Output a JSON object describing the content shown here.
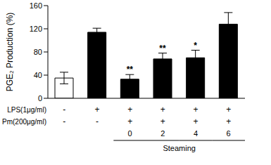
{
  "chart_data": {
    "type": "bar",
    "y_label": "PGE₂ Production (%)",
    "categories": [
      null,
      null,
      "0",
      "2",
      "4",
      "6"
    ],
    "values": [
      35,
      114,
      33,
      68,
      70,
      128
    ],
    "errors": [
      10,
      7,
      8,
      10,
      13,
      20
    ],
    "annotations": [
      null,
      null,
      "**",
      "**",
      "*",
      null
    ],
    "colors": [
      "#ffffff",
      "#000000",
      "#000000",
      "#000000",
      "#000000",
      "#000000"
    ],
    "ylim": [
      0,
      160
    ],
    "yticks": [
      0,
      40,
      80,
      120,
      160
    ],
    "rows": [
      {
        "label": "LPS(1μg/ml)",
        "values": [
          "-",
          "+",
          "+",
          "+",
          "+",
          "+"
        ]
      },
      {
        "label": "Pm(200μg/ml)",
        "values": [
          "-",
          "-",
          "+",
          "+",
          "+",
          "+"
        ]
      }
    ],
    "group_label": "Steaming"
  }
}
